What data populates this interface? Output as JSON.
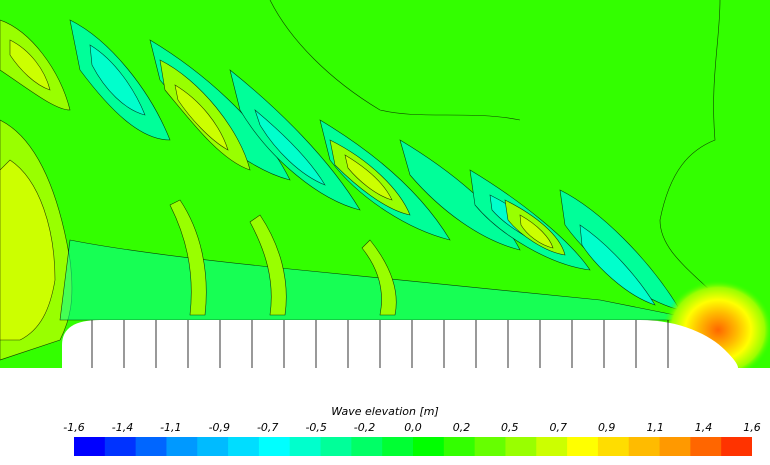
{
  "chart_data": {
    "type": "heatmap",
    "title": "",
    "colorbar": {
      "label": "Wave elevation [m]",
      "range": [
        -1.6,
        1.6
      ],
      "tick_labels": [
        "-1,6",
        "-1,4",
        "-1,1",
        "-0,9",
        "-0,7",
        "-0,5",
        "-0,2",
        "0,0",
        "0,2",
        "0,5",
        "0,7",
        "0,9",
        "1,1",
        "1,4",
        "1,6"
      ],
      "tick_values": [
        -1.6,
        -1.371,
        -1.143,
        -0.914,
        -0.686,
        -0.457,
        -0.229,
        0.0,
        0.229,
        0.457,
        0.686,
        0.914,
        1.143,
        1.371,
        1.6
      ],
      "colors": [
        "#0000ff",
        "#0033ff",
        "#0066ff",
        "#0099ff",
        "#00bbff",
        "#00ddff",
        "#00ffff",
        "#00ffcc",
        "#00ff99",
        "#00ff66",
        "#00ff33",
        "#00ff00",
        "#33ff00",
        "#66ff00",
        "#99ff00",
        "#ccff00",
        "#ffff00",
        "#ffdd00",
        "#ffbb00",
        "#ff9900",
        "#ff6600",
        "#ff3300"
      ]
    },
    "field_description": "Kelvin wave pattern behind ship hull; background elevation about 0.0 m, troughs down to about -0.5 m, crests up to about 0.9 m, bow peak near 1.6 m at the right end of the hull",
    "colors": {
      "background_field": "#33ff00",
      "trough": "#00ffcc",
      "crest": "#ccff00",
      "hull": "#ffffff"
    }
  }
}
